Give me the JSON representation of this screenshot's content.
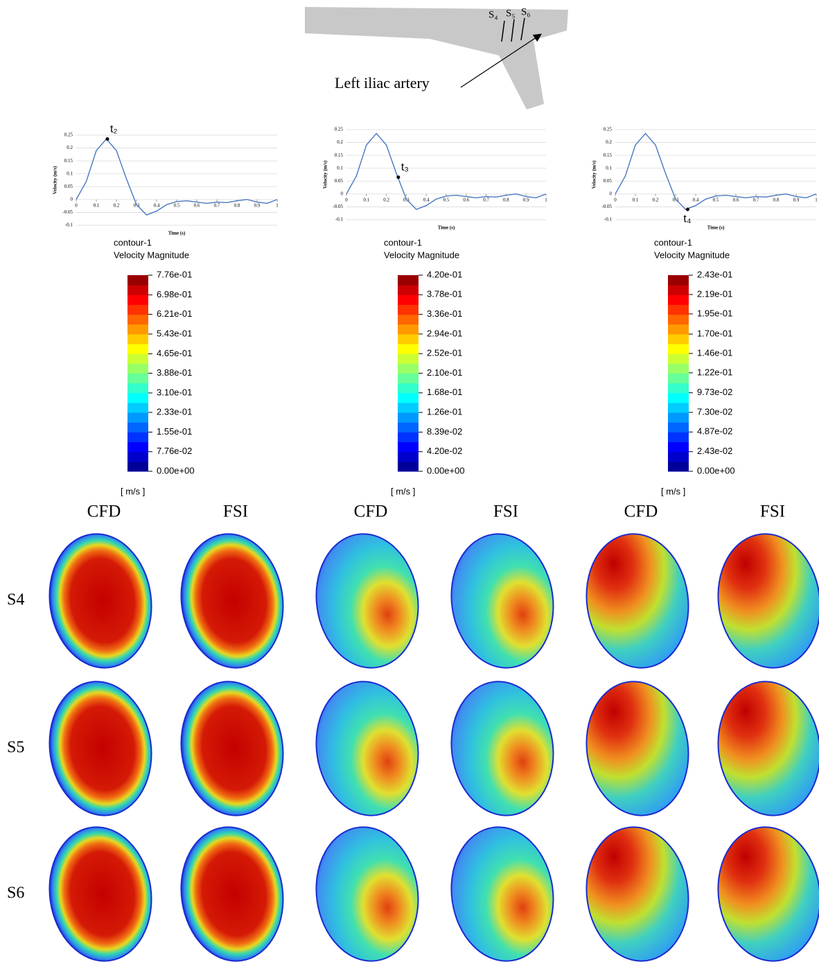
{
  "diagram": {
    "label": "Left iliac artery",
    "sections": [
      "S₄",
      "S₅",
      "S₆"
    ]
  },
  "chart_data": [
    {
      "type": "line",
      "xlabel": "Time (s)",
      "ylabel": "Velocity (m/s)",
      "color": "#4a78c0",
      "grid": true,
      "x": [
        0,
        0.05,
        0.1,
        0.15,
        0.2,
        0.25,
        0.3,
        0.35,
        0.4,
        0.45,
        0.5,
        0.55,
        0.6,
        0.65,
        0.7,
        0.75,
        0.8,
        0.85,
        0.9,
        0.95,
        1
      ],
      "values": [
        0,
        0.07,
        0.19,
        0.235,
        0.19,
        0.08,
        -0.02,
        -0.06,
        -0.045,
        -0.02,
        -0.008,
        -0.005,
        -0.01,
        -0.015,
        -0.01,
        -0.012,
        -0.005,
        0,
        -0.01,
        -0.015,
        0
      ],
      "xlim": [
        0,
        1
      ],
      "xticks": [
        0,
        0.1,
        0.2,
        0.3,
        0.4,
        0.5,
        0.6,
        0.7,
        0.8,
        0.9,
        1
      ],
      "ylim": [
        -0.1,
        0.25
      ],
      "yticks": [
        -0.1,
        -0.05,
        0,
        0.05,
        0.1,
        0.15,
        0.2,
        0.25
      ],
      "annotation": {
        "x": 0.155,
        "y": 0.235,
        "label": "t₂"
      }
    },
    {
      "type": "line",
      "xlabel": "Time (s)",
      "ylabel": "Velocity (m/s)",
      "color": "#4a78c0",
      "grid": true,
      "x": [
        0,
        0.05,
        0.1,
        0.15,
        0.2,
        0.25,
        0.3,
        0.35,
        0.4,
        0.45,
        0.5,
        0.55,
        0.6,
        0.65,
        0.7,
        0.75,
        0.8,
        0.85,
        0.9,
        0.95,
        1
      ],
      "values": [
        0,
        0.07,
        0.19,
        0.235,
        0.19,
        0.08,
        -0.02,
        -0.06,
        -0.045,
        -0.02,
        -0.008,
        -0.005,
        -0.01,
        -0.015,
        -0.01,
        -0.012,
        -0.005,
        0,
        -0.01,
        -0.015,
        0
      ],
      "xlim": [
        0,
        1
      ],
      "xticks": [
        0,
        0.1,
        0.2,
        0.3,
        0.4,
        0.5,
        0.6,
        0.7,
        0.8,
        0.9,
        1
      ],
      "ylim": [
        -0.1,
        0.25
      ],
      "yticks": [
        -0.1,
        -0.05,
        0,
        0.05,
        0.1,
        0.15,
        0.2,
        0.25
      ],
      "annotation": {
        "x": 0.26,
        "y": 0.065,
        "label": "t₃"
      }
    },
    {
      "type": "line",
      "xlabel": "Time (s)",
      "ylabel": "Velocity (m/s)",
      "color": "#4a78c0",
      "grid": true,
      "x": [
        0,
        0.05,
        0.1,
        0.15,
        0.2,
        0.25,
        0.3,
        0.35,
        0.4,
        0.45,
        0.5,
        0.55,
        0.6,
        0.65,
        0.7,
        0.75,
        0.8,
        0.85,
        0.9,
        0.95,
        1
      ],
      "values": [
        0,
        0.07,
        0.19,
        0.235,
        0.19,
        0.08,
        -0.02,
        -0.06,
        -0.045,
        -0.02,
        -0.008,
        -0.005,
        -0.01,
        -0.015,
        -0.01,
        -0.012,
        -0.005,
        0,
        -0.01,
        -0.015,
        0
      ],
      "xlim": [
        0,
        1
      ],
      "xticks": [
        0,
        0.1,
        0.2,
        0.3,
        0.4,
        0.5,
        0.6,
        0.7,
        0.8,
        0.9,
        1
      ],
      "ylim": [
        -0.1,
        0.25
      ],
      "yticks": [
        -0.1,
        -0.05,
        0,
        0.05,
        0.1,
        0.15,
        0.2,
        0.25
      ],
      "annotation": {
        "x": 0.36,
        "y": -0.06,
        "label": "t₄"
      }
    }
  ],
  "colorbars": [
    {
      "title": "contour-1",
      "subtitle": "Velocity Magnitude",
      "unit": "[ m/s ]",
      "clim": [
        0,
        0.776
      ],
      "ticks": [
        {
          "value": 0.776,
          "label": "7.76e-01"
        },
        {
          "value": 0.698,
          "label": "6.98e-01"
        },
        {
          "value": 0.621,
          "label": "6.21e-01"
        },
        {
          "value": 0.543,
          "label": "5.43e-01"
        },
        {
          "value": 0.465,
          "label": "4.65e-01"
        },
        {
          "value": 0.388,
          "label": "3.88e-01"
        },
        {
          "value": 0.31,
          "label": "3.10e-01"
        },
        {
          "value": 0.233,
          "label": "2.33e-01"
        },
        {
          "value": 0.155,
          "label": "1.55e-01"
        },
        {
          "value": 0.0776,
          "label": "7.76e-02"
        },
        {
          "value": 0,
          "label": "0.00e+00"
        }
      ]
    },
    {
      "title": "contour-1",
      "subtitle": "Velocity Magnitude",
      "unit": "[ m/s ]",
      "clim": [
        0,
        0.42
      ],
      "ticks": [
        {
          "value": 0.42,
          "label": "4.20e-01"
        },
        {
          "value": 0.378,
          "label": "3.78e-01"
        },
        {
          "value": 0.336,
          "label": "3.36e-01"
        },
        {
          "value": 0.294,
          "label": "2.94e-01"
        },
        {
          "value": 0.252,
          "label": "2.52e-01"
        },
        {
          "value": 0.21,
          "label": "2.10e-01"
        },
        {
          "value": 0.168,
          "label": "1.68e-01"
        },
        {
          "value": 0.126,
          "label": "1.26e-01"
        },
        {
          "value": 0.0839,
          "label": "8.39e-02"
        },
        {
          "value": 0.042,
          "label": "4.20e-02"
        },
        {
          "value": 0,
          "label": "0.00e+00"
        }
      ]
    },
    {
      "title": "contour-1",
      "subtitle": "Velocity Magnitude",
      "unit": "[ m/s ]",
      "clim": [
        0,
        0.243
      ],
      "ticks": [
        {
          "value": 0.243,
          "label": "2.43e-01"
        },
        {
          "value": 0.219,
          "label": "2.19e-01"
        },
        {
          "value": 0.195,
          "label": "1.95e-01"
        },
        {
          "value": 0.17,
          "label": "1.70e-01"
        },
        {
          "value": 0.146,
          "label": "1.46e-01"
        },
        {
          "value": 0.122,
          "label": "1.22e-01"
        },
        {
          "value": 0.0973,
          "label": "9.73e-02"
        },
        {
          "value": 0.073,
          "label": "7.30e-02"
        },
        {
          "value": 0.0487,
          "label": "4.87e-02"
        },
        {
          "value": 0.0243,
          "label": "2.43e-02"
        },
        {
          "value": 0,
          "label": "0.00e+00"
        }
      ]
    }
  ],
  "columns": [
    "CFD",
    "FSI",
    "CFD",
    "FSI",
    "CFD",
    "FSI"
  ],
  "rows": [
    "S4",
    "S5",
    "S6"
  ]
}
